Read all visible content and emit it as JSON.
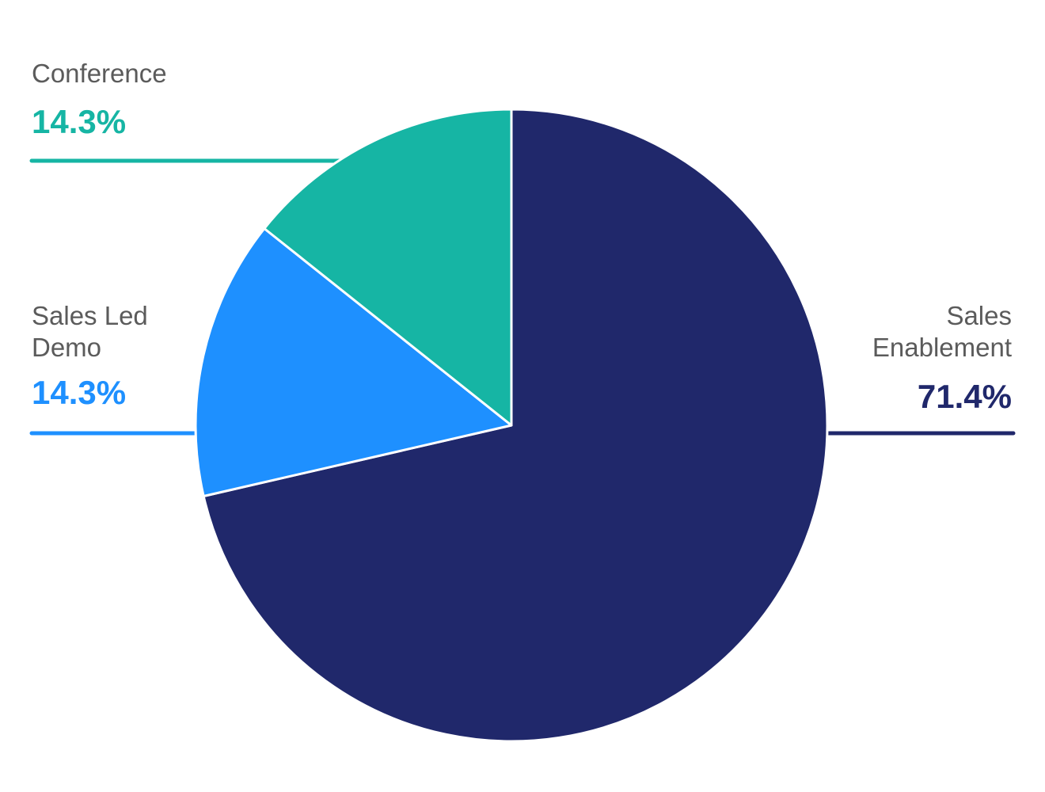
{
  "chart_data": {
    "type": "pie",
    "slices": [
      {
        "key": "sales-enablement",
        "label_lines": [
          "Sales",
          "Enablement"
        ],
        "value": 71.4,
        "display": "71.4%",
        "color": "#20286b"
      },
      {
        "key": "sales-led-demo",
        "label_lines": [
          "Sales Led",
          "Demo"
        ],
        "value": 14.3,
        "display": "14.3%",
        "color": "#1e90ff"
      },
      {
        "key": "conference",
        "label_lines": [
          "Conference"
        ],
        "value": 14.3,
        "display": "14.3%",
        "color": "#16b5a4"
      }
    ],
    "start_angle_deg": 0,
    "direction": "clockwise",
    "slice_border_color": "#ffffff",
    "label_text_color": "#5b5b5b"
  }
}
